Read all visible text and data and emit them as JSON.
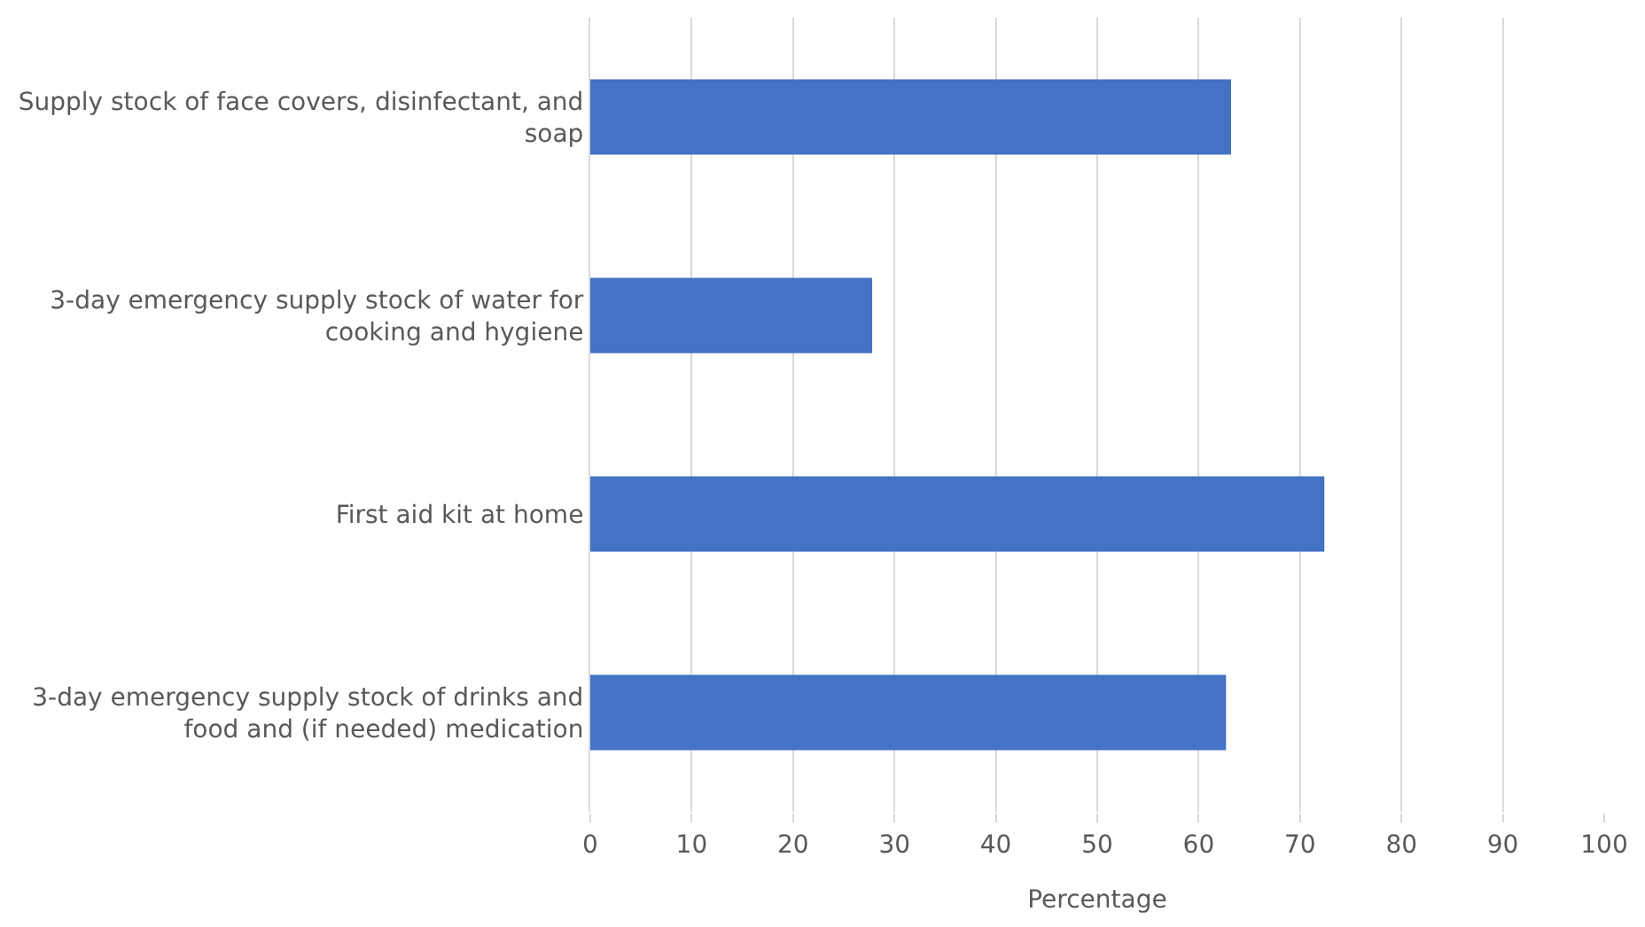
{
  "chart_data": {
    "type": "bar",
    "orientation": "horizontal",
    "xlabel": "Percentage",
    "categories": [
      "Supply stock of face covers, disinfectant, and soap",
      "3-day emergency supply stock of water for cooking and hygiene",
      "First aid kit at home",
      "3-day emergency supply stock of drinks and food and (if needed) medication"
    ],
    "values": [
      63.2,
      27.8,
      72.4,
      62.7
    ],
    "color": "#4472c4",
    "xlim": [
      0,
      100
    ],
    "xticks": [
      0,
      10,
      20,
      30,
      40,
      50,
      60,
      70,
      80,
      90,
      100
    ],
    "grid": "x"
  }
}
